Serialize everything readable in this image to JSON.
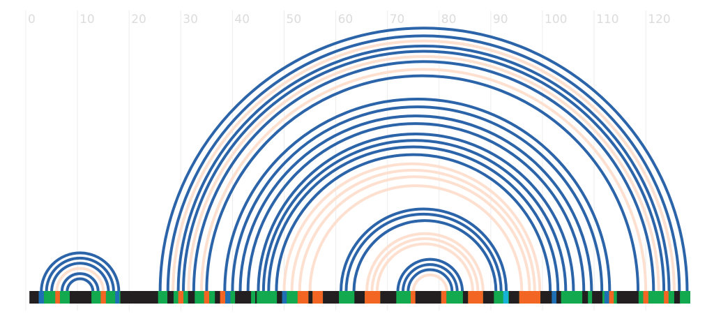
{
  "chart_data": {
    "type": "arc",
    "xlim": [
      0,
      129
    ],
    "xticks": [
      0,
      10,
      20,
      30,
      40,
      50,
      60,
      70,
      80,
      90,
      100,
      110,
      120
    ],
    "grid": true,
    "arcs": [
      {
        "start": 3,
        "end": 18,
        "color": "#2b64a8"
      },
      {
        "start": 4,
        "end": 17,
        "color": "#2b64a8"
      },
      {
        "start": 5,
        "end": 16,
        "color": "#2b64a8"
      },
      {
        "start": 6,
        "end": 15,
        "color": "#fde0d0"
      },
      {
        "start": 7,
        "end": 14,
        "color": "#2b64a8"
      },
      {
        "start": 8,
        "end": 13,
        "color": "#2b64a8"
      },
      {
        "start": 26,
        "end": 128,
        "color": "#2b64a8"
      },
      {
        "start": 27.5,
        "end": 126.5,
        "color": "#2b64a8"
      },
      {
        "start": 28.5,
        "end": 125.5,
        "color": "#fde0d0"
      },
      {
        "start": 29.5,
        "end": 124.5,
        "color": "#2b64a8"
      },
      {
        "start": 30.5,
        "end": 123.5,
        "color": "#2b64a8"
      },
      {
        "start": 31.5,
        "end": 122.5,
        "color": "#fde0d0"
      },
      {
        "start": 32.5,
        "end": 121.5,
        "color": "#2b64a8"
      },
      {
        "start": 34,
        "end": 120,
        "color": "#fde0d0"
      },
      {
        "start": 35,
        "end": 118.5,
        "color": "#2b64a8"
      },
      {
        "start": 38.5,
        "end": 113,
        "color": "#2b64a8"
      },
      {
        "start": 40,
        "end": 111.5,
        "color": "#2b64a8"
      },
      {
        "start": 41.5,
        "end": 109.5,
        "color": "#2b64a8"
      },
      {
        "start": 43,
        "end": 108,
        "color": "#2b64a8"
      },
      {
        "start": 45,
        "end": 106,
        "color": "#2b64a8"
      },
      {
        "start": 46,
        "end": 104.5,
        "color": "#2b64a8"
      },
      {
        "start": 47,
        "end": 103,
        "color": "#2b64a8"
      },
      {
        "start": 48.5,
        "end": 101.5,
        "color": "#2b64a8"
      },
      {
        "start": 50,
        "end": 99.5,
        "color": "#fde0d0"
      },
      {
        "start": 51.5,
        "end": 98.5,
        "color": "#fde0d0"
      },
      {
        "start": 53,
        "end": 97.5,
        "color": "#fde0d0"
      },
      {
        "start": 55,
        "end": 96,
        "color": "#fde0d0"
      },
      {
        "start": 61,
        "end": 93,
        "color": "#2b64a8"
      },
      {
        "start": 62,
        "end": 92,
        "color": "#2b64a8"
      },
      {
        "start": 63.5,
        "end": 91,
        "color": "#2b64a8"
      },
      {
        "start": 66,
        "end": 88.5,
        "color": "#fde0d0"
      },
      {
        "start": 67,
        "end": 87.5,
        "color": "#fde0d0"
      },
      {
        "start": 68,
        "end": 86.5,
        "color": "#fde0d0"
      },
      {
        "start": 72,
        "end": 84.5,
        "color": "#2b64a8"
      },
      {
        "start": 73,
        "end": 83.5,
        "color": "#2b64a8"
      },
      {
        "start": 74,
        "end": 82.5,
        "color": "#2b64a8"
      },
      {
        "start": 75,
        "end": 81.5,
        "color": "#fde0d0"
      }
    ],
    "segments": [
      {
        "start": 0.7,
        "end": 128.6,
        "color": "#231f20"
      },
      {
        "start": 3.1,
        "end": 8.5,
        "color": "#12a94f"
      },
      {
        "start": 12.7,
        "end": 18.3,
        "color": "#12a94f"
      },
      {
        "start": 25.6,
        "end": 27.4,
        "color": "#12a94f"
      },
      {
        "start": 28.6,
        "end": 31.4,
        "color": "#12a94f"
      },
      {
        "start": 32.7,
        "end": 36.6,
        "color": "#12a94f"
      },
      {
        "start": 37.7,
        "end": 40.5,
        "color": "#12a94f"
      },
      {
        "start": 43.6,
        "end": 44.4,
        "color": "#12a94f"
      },
      {
        "start": 44.7,
        "end": 48.6,
        "color": "#12a94f"
      },
      {
        "start": 49.7,
        "end": 54.7,
        "color": "#12a94f"
      },
      {
        "start": 55.5,
        "end": 57.5,
        "color": "#12a94f"
      },
      {
        "start": 60.6,
        "end": 63.6,
        "color": "#12a94f"
      },
      {
        "start": 65.6,
        "end": 68.6,
        "color": "#12a94f"
      },
      {
        "start": 71.7,
        "end": 74.6,
        "color": "#12a94f"
      },
      {
        "start": 80.4,
        "end": 84.6,
        "color": "#12a94f"
      },
      {
        "start": 85.6,
        "end": 88.5,
        "color": "#12a94f"
      },
      {
        "start": 90.6,
        "end": 93.5,
        "color": "#12a94f"
      },
      {
        "start": 95.5,
        "end": 99.6,
        "color": "#12a94f"
      },
      {
        "start": 103.6,
        "end": 107.7,
        "color": "#12a94f"
      },
      {
        "start": 108.8,
        "end": 109.6,
        "color": "#12a94f"
      },
      {
        "start": 111.6,
        "end": 114.4,
        "color": "#12a94f"
      },
      {
        "start": 118.6,
        "end": 125.5,
        "color": "#12a94f"
      },
      {
        "start": 126.6,
        "end": 128.6,
        "color": "#12a94f"
      },
      {
        "start": 2.5,
        "end": 3.5,
        "color": "#1f6fb5"
      },
      {
        "start": 5.7,
        "end": 6.6,
        "color": "#f26522"
      },
      {
        "start": 14.5,
        "end": 15.5,
        "color": "#f26522"
      },
      {
        "start": 17.3,
        "end": 18.1,
        "color": "#1f6fb5"
      },
      {
        "start": 29.5,
        "end": 30.5,
        "color": "#f26522"
      },
      {
        "start": 34.5,
        "end": 35.5,
        "color": "#f26522"
      },
      {
        "start": 37.6,
        "end": 38.6,
        "color": "#f26522"
      },
      {
        "start": 38.6,
        "end": 39.6,
        "color": "#1f6fb5"
      },
      {
        "start": 49.6,
        "end": 50.5,
        "color": "#1f6fb5"
      },
      {
        "start": 52.6,
        "end": 54.7,
        "color": "#f26522"
      },
      {
        "start": 55.5,
        "end": 57.5,
        "color": "#f26522"
      },
      {
        "start": 65.6,
        "end": 68.6,
        "color": "#f26522"
      },
      {
        "start": 74.5,
        "end": 75.4,
        "color": "#f26522"
      },
      {
        "start": 80.4,
        "end": 81.4,
        "color": "#f26522"
      },
      {
        "start": 85.6,
        "end": 88.5,
        "color": "#f26522"
      },
      {
        "start": 92.4,
        "end": 93.4,
        "color": "#17b3d6"
      },
      {
        "start": 95.5,
        "end": 99.6,
        "color": "#f26522"
      },
      {
        "start": 101.8,
        "end": 102.7,
        "color": "#1f6fb5"
      },
      {
        "start": 112,
        "end": 112.9,
        "color": "#1f6fb5"
      },
      {
        "start": 112.9,
        "end": 113.8,
        "color": "#f26522"
      },
      {
        "start": 119.5,
        "end": 120.5,
        "color": "#f26522"
      },
      {
        "start": 123.5,
        "end": 124.4,
        "color": "#f26522"
      }
    ]
  }
}
